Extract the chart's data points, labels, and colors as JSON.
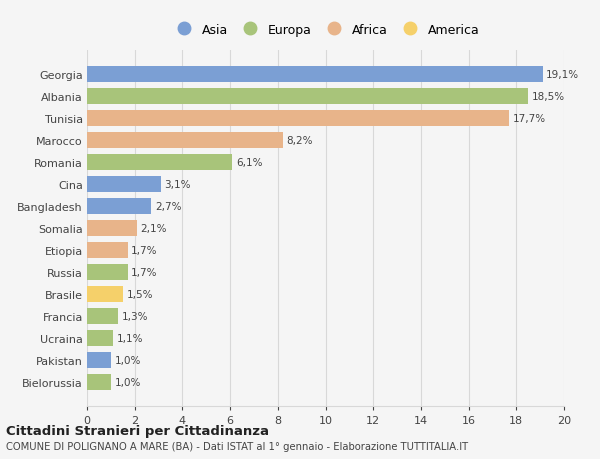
{
  "countries": [
    "Georgia",
    "Albania",
    "Tunisia",
    "Marocco",
    "Romania",
    "Cina",
    "Bangladesh",
    "Somalia",
    "Etiopia",
    "Russia",
    "Brasile",
    "Francia",
    "Ucraina",
    "Pakistan",
    "Bielorussia"
  ],
  "values": [
    19.1,
    18.5,
    17.7,
    8.2,
    6.1,
    3.1,
    2.7,
    2.1,
    1.7,
    1.7,
    1.5,
    1.3,
    1.1,
    1.0,
    1.0
  ],
  "labels": [
    "19,1%",
    "18,5%",
    "17,7%",
    "8,2%",
    "6,1%",
    "3,1%",
    "2,7%",
    "2,1%",
    "1,7%",
    "1,7%",
    "1,5%",
    "1,3%",
    "1,1%",
    "1,0%",
    "1,0%"
  ],
  "continents": [
    "Asia",
    "Europa",
    "Africa",
    "Africa",
    "Europa",
    "Asia",
    "Asia",
    "Africa",
    "Africa",
    "Europa",
    "America",
    "Europa",
    "Europa",
    "Asia",
    "Europa"
  ],
  "colors": {
    "Asia": "#7b9fd4",
    "Europa": "#a8c47a",
    "Africa": "#e8b48a",
    "America": "#f5d06a"
  },
  "xlim": [
    0,
    20
  ],
  "xticks": [
    0,
    2,
    4,
    6,
    8,
    10,
    12,
    14,
    16,
    18,
    20
  ],
  "title": "Cittadini Stranieri per Cittadinanza",
  "subtitle": "COMUNE DI POLIGNANO A MARE (BA) - Dati ISTAT al 1° gennaio - Elaborazione TUTTITALIA.IT",
  "background_color": "#f5f5f5",
  "grid_color": "#d8d8d8",
  "text_color": "#444444"
}
